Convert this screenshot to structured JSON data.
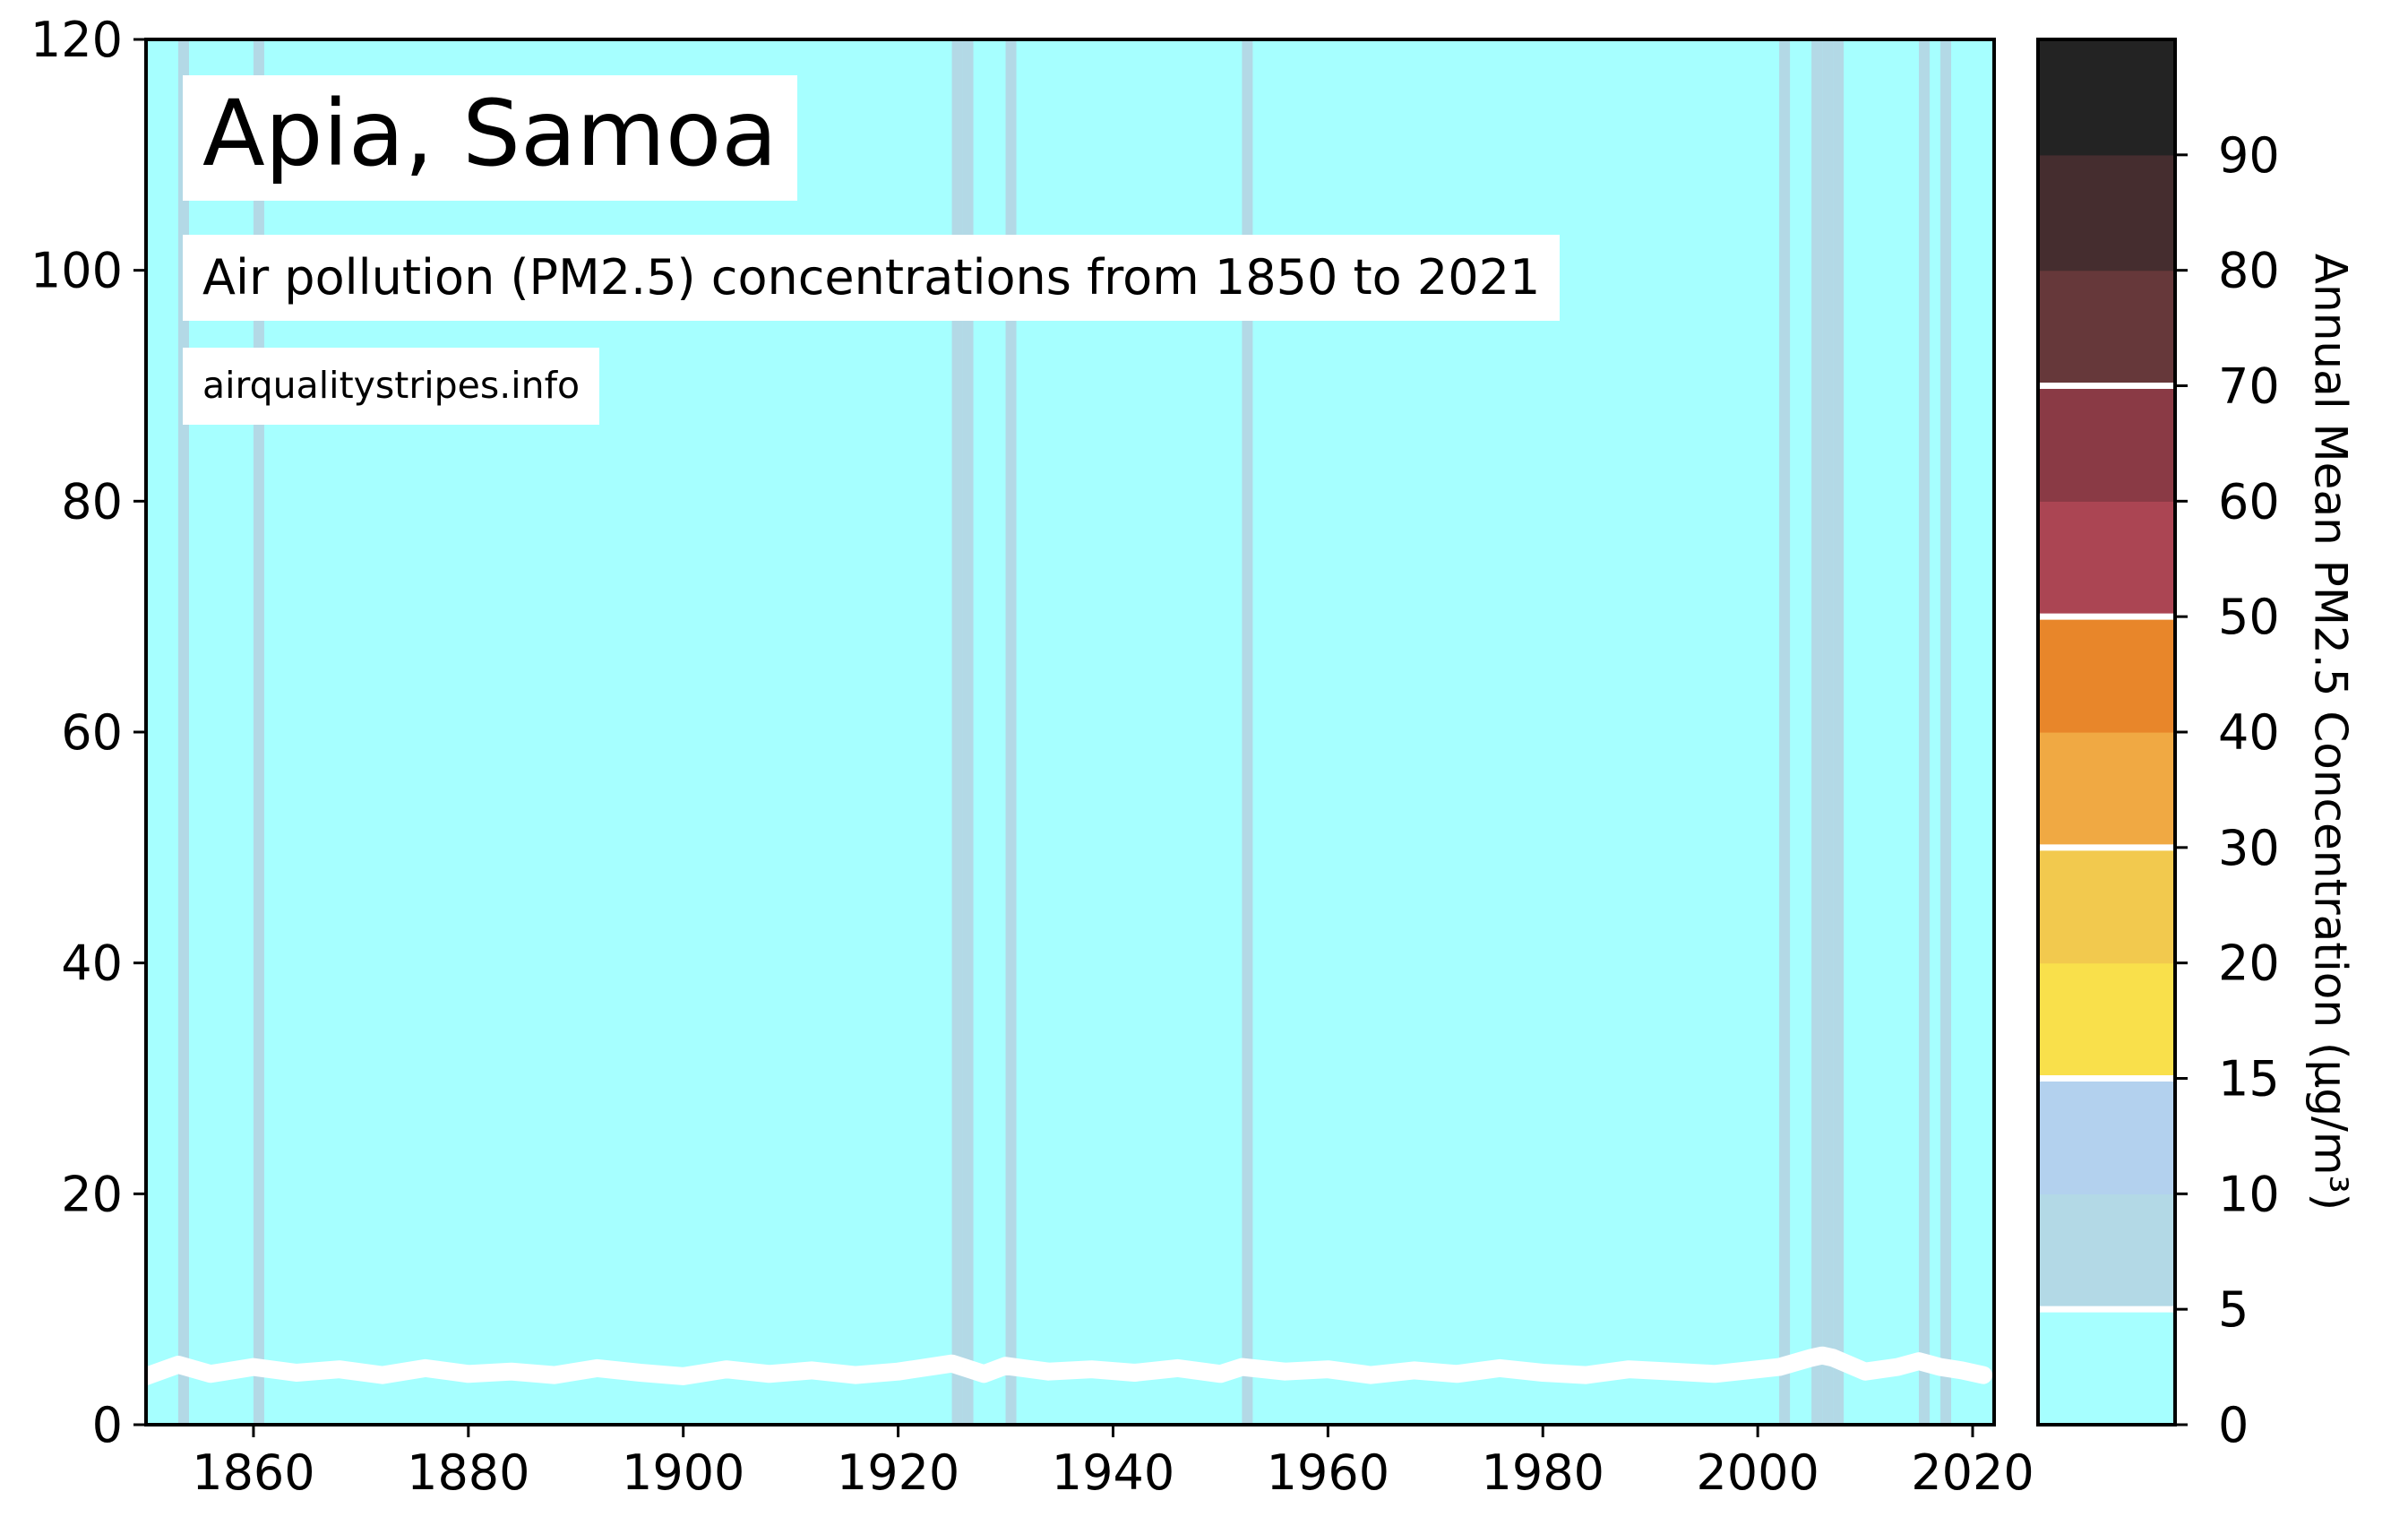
{
  "title": "Apia, Samoa",
  "subtitle": "Air pollution (PM2.5) concentrations from 1850 to 2021",
  "source": "airqualitystripes.info",
  "colors": {
    "background_stripe": "#a6ffff",
    "highlight_stripe": "#b3d9e6",
    "line": "#ffffff",
    "scale": [
      "#a6ffff",
      "#b3d9e6",
      "#b3d1ee",
      "#f9e04b",
      "#f2c94e",
      "#f0a943",
      "#e8862a",
      "#ab4553",
      "#8a3a45",
      "#66383a",
      "#452d2f",
      "#232323"
    ]
  },
  "chart_data": {
    "type": "line",
    "x_range": [
      1850,
      2022
    ],
    "ylim": [
      0,
      120
    ],
    "grid": false,
    "x_ticks": [
      "1860",
      "1880",
      "1900",
      "1920",
      "1940",
      "1960",
      "1980",
      "2000",
      "2020"
    ],
    "y_ticks": [
      "0",
      "20",
      "40",
      "60",
      "80",
      "100",
      "120"
    ],
    "highlighted_years": [
      1853,
      1860,
      1925,
      1926,
      1930,
      1952,
      2002,
      2005,
      2006,
      2007,
      2015,
      2017
    ],
    "series": [
      {
        "x": [
          1850,
          1853,
          1856,
          1860,
          1864,
          1868,
          1872,
          1876,
          1880,
          1884,
          1888,
          1892,
          1896,
          1900,
          1904,
          1908,
          1912,
          1916,
          1920,
          1925,
          1928,
          1930,
          1934,
          1938,
          1942,
          1946,
          1950,
          1952,
          1956,
          1960,
          1964,
          1968,
          1972,
          1976,
          1980,
          1984,
          1988,
          1992,
          1996,
          2000,
          2002,
          2005,
          2006,
          2007,
          2010,
          2013,
          2015,
          2017,
          2019,
          2021
        ],
        "y": [
          4.2,
          5.2,
          4.4,
          5.0,
          4.5,
          4.8,
          4.3,
          4.9,
          4.4,
          4.6,
          4.3,
          4.9,
          4.5,
          4.2,
          4.8,
          4.4,
          4.7,
          4.3,
          4.6,
          5.3,
          4.4,
          5.1,
          4.6,
          4.8,
          4.5,
          4.9,
          4.4,
          5.0,
          4.6,
          4.8,
          4.3,
          4.7,
          4.4,
          4.9,
          4.5,
          4.3,
          4.8,
          4.6,
          4.4,
          4.8,
          5.0,
          5.8,
          6.0,
          5.8,
          4.6,
          5.0,
          5.5,
          5.0,
          4.7,
          4.3
        ]
      }
    ],
    "colorbar": {
      "label": "Annual Mean PM2.5 Concentration (μg/m³)",
      "tick_labels": [
        "0",
        "5",
        "10",
        "15",
        "20",
        "30",
        "40",
        "50",
        "60",
        "70",
        "80",
        "90"
      ],
      "bins": [
        0,
        5,
        10,
        15,
        20,
        30,
        40,
        50,
        60,
        70,
        80,
        90,
        100
      ],
      "separators_at": [
        5,
        15,
        30,
        50,
        70
      ]
    }
  }
}
